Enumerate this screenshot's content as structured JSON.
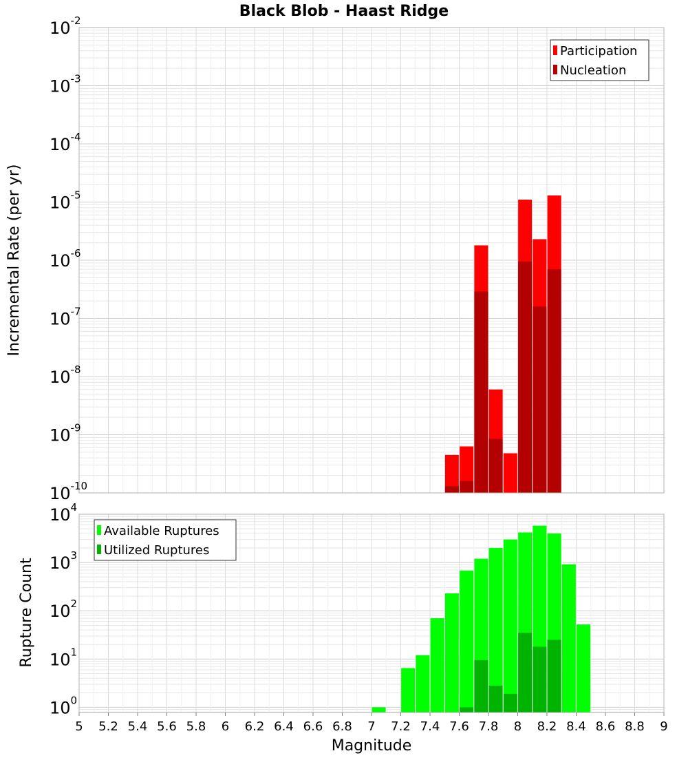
{
  "title": "Black Blob - Haast Ridge",
  "x_axis_label": "Magnitude",
  "chart_data": [
    {
      "type": "bar",
      "ylabel": "Incremental Rate (per yr)",
      "y_scale": "log",
      "ylim": [
        1e-10,
        0.01
      ],
      "y_tick_exponents": [
        "-2",
        "-3",
        "-4",
        "-5",
        "-6",
        "-7",
        "-8",
        "-9",
        "-10"
      ],
      "xlim": [
        5,
        9
      ],
      "legend_position": "top-right",
      "series": [
        {
          "name": "Participation",
          "color": "#ff0000",
          "points": [
            [
              7.55,
              4.5e-10
            ],
            [
              7.65,
              6.3e-10
            ],
            [
              7.75,
              1.8e-06
            ],
            [
              7.85,
              6e-09
            ],
            [
              7.95,
              4.8e-10
            ],
            [
              8.05,
              1.1e-05
            ],
            [
              8.15,
              2.3e-06
            ],
            [
              8.25,
              1.3e-05
            ]
          ]
        },
        {
          "name": "Nucleation",
          "color": "#b30000",
          "points": [
            [
              7.55,
              1.3e-10
            ],
            [
              7.65,
              1.6e-10
            ],
            [
              7.75,
              2.9e-07
            ],
            [
              7.85,
              8.5e-10
            ],
            [
              8.05,
              9.5e-07
            ],
            [
              8.15,
              1.6e-07
            ],
            [
              8.25,
              7e-07
            ]
          ]
        }
      ]
    },
    {
      "type": "bar",
      "ylabel": "Rupture Count",
      "y_scale": "log",
      "ylim": [
        0.78,
        10000
      ],
      "y_tick_exponents": [
        "0",
        "1",
        "2",
        "3",
        "4"
      ],
      "xlim": [
        5,
        9
      ],
      "x_ticks": [
        "5",
        "5.2",
        "5.4",
        "5.6",
        "5.8",
        "6",
        "6.2",
        "6.4",
        "6.6",
        "6.8",
        "7",
        "7.2",
        "7.4",
        "7.6",
        "7.8",
        "8",
        "8.2",
        "8.4",
        "8.6",
        "8.8",
        "9"
      ],
      "legend_position": "top-left",
      "series": [
        {
          "name": "Available Ruptures",
          "color": "#00ff00",
          "points": [
            [
              7.05,
              1
            ],
            [
              7.25,
              6.5
            ],
            [
              7.35,
              12
            ],
            [
              7.45,
              70
            ],
            [
              7.55,
              230
            ],
            [
              7.65,
              680
            ],
            [
              7.75,
              1200
            ],
            [
              7.85,
              2000
            ],
            [
              7.95,
              3000
            ],
            [
              8.05,
              4200
            ],
            [
              8.15,
              5800
            ],
            [
              8.25,
              4000
            ],
            [
              8.35,
              920
            ],
            [
              8.45,
              52
            ]
          ]
        },
        {
          "name": "Utilized Ruptures",
          "color": "#00b300",
          "points": [
            [
              7.65,
              1
            ],
            [
              7.75,
              9.5
            ],
            [
              7.85,
              2.8
            ],
            [
              7.95,
              1.9
            ],
            [
              8.05,
              35
            ],
            [
              8.15,
              18
            ],
            [
              8.25,
              25
            ]
          ]
        }
      ]
    }
  ]
}
